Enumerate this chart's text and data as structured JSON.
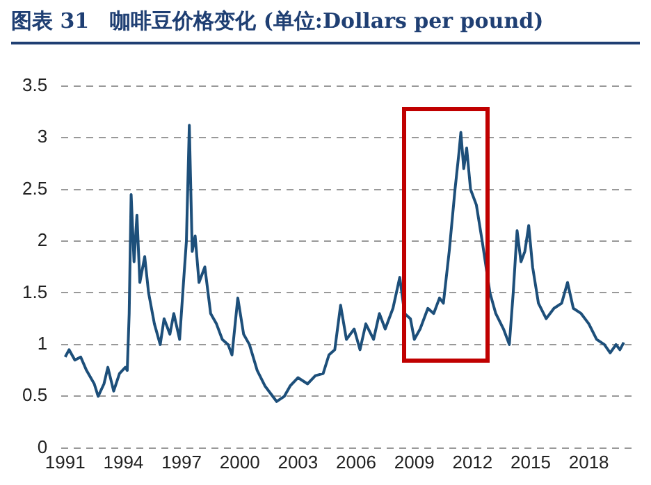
{
  "chart_data": {
    "type": "line",
    "title": "图表 31　咖啡豆价格变化 (单位:Dollars per pound)",
    "x": [
      1991.0,
      1991.2,
      1991.5,
      1991.8,
      1992.1,
      1992.5,
      1992.7,
      1993.0,
      1993.2,
      1993.5,
      1993.8,
      1994.1,
      1994.2,
      1994.3,
      1994.4,
      1994.55,
      1994.7,
      1994.85,
      1995.1,
      1995.3,
      1995.6,
      1995.9,
      1996.1,
      1996.4,
      1996.6,
      1996.9,
      1997.1,
      1997.25,
      1997.4,
      1997.55,
      1997.7,
      1997.9,
      1998.2,
      1998.5,
      1998.8,
      1999.1,
      1999.4,
      1999.6,
      1999.9,
      2000.2,
      2000.5,
      2000.9,
      2001.3,
      2001.9,
      2002.3,
      2002.6,
      2003.0,
      2003.5,
      2003.9,
      2004.3,
      2004.6,
      2004.9,
      2005.2,
      2005.5,
      2005.9,
      2006.2,
      2006.5,
      2006.9,
      2007.2,
      2007.5,
      2007.9,
      2008.25,
      2008.5,
      2008.8,
      2009.0,
      2009.3,
      2009.7,
      2010.0,
      2010.3,
      2010.5,
      2010.8,
      2011.1,
      2011.3,
      2011.4,
      2011.55,
      2011.7,
      2011.9,
      2012.2,
      2012.5,
      2012.9,
      2013.2,
      2013.6,
      2013.9,
      2014.1,
      2014.3,
      2014.5,
      2014.7,
      2014.9,
      2015.1,
      2015.4,
      2015.8,
      2016.2,
      2016.6,
      2016.9,
      2017.2,
      2017.6,
      2018.0,
      2018.4,
      2018.8,
      2019.1,
      2019.4,
      2019.6,
      2019.8
    ],
    "series": [
      {
        "color": "#1d4f7a",
        "values": [
          0.88,
          0.95,
          0.85,
          0.88,
          0.75,
          0.62,
          0.5,
          0.62,
          0.78,
          0.55,
          0.72,
          0.78,
          0.75,
          1.3,
          2.45,
          1.8,
          2.25,
          1.6,
          1.85,
          1.5,
          1.2,
          1.0,
          1.25,
          1.1,
          1.3,
          1.05,
          1.6,
          2.0,
          3.12,
          1.9,
          2.05,
          1.6,
          1.75,
          1.3,
          1.2,
          1.05,
          1.0,
          0.9,
          1.45,
          1.1,
          1.0,
          0.75,
          0.6,
          0.45,
          0.5,
          0.6,
          0.68,
          0.62,
          0.7,
          0.72,
          0.9,
          0.95,
          1.38,
          1.05,
          1.15,
          0.95,
          1.2,
          1.05,
          1.3,
          1.15,
          1.35,
          1.65,
          1.3,
          1.25,
          1.05,
          1.15,
          1.35,
          1.3,
          1.45,
          1.4,
          1.9,
          2.5,
          2.85,
          3.05,
          2.7,
          2.9,
          2.5,
          2.35,
          2.0,
          1.5,
          1.3,
          1.15,
          1.0,
          1.5,
          2.1,
          1.8,
          1.9,
          2.15,
          1.75,
          1.4,
          1.25,
          1.35,
          1.4,
          1.6,
          1.35,
          1.3,
          1.2,
          1.05,
          1.0,
          0.92,
          1.0,
          0.95,
          1.02
        ]
      }
    ],
    "xlim": [
      1990.8,
      2020.2
    ],
    "xticks": [
      1991,
      1994,
      1997,
      2000,
      2003,
      2006,
      2009,
      2012,
      2015,
      2018
    ],
    "ylim": [
      0,
      3.5
    ],
    "yticks": [
      0,
      0.5,
      1,
      1.5,
      2,
      2.5,
      3,
      3.5
    ],
    "grid": "y",
    "legend": false,
    "marker": "none",
    "line_style": "solid"
  }
}
